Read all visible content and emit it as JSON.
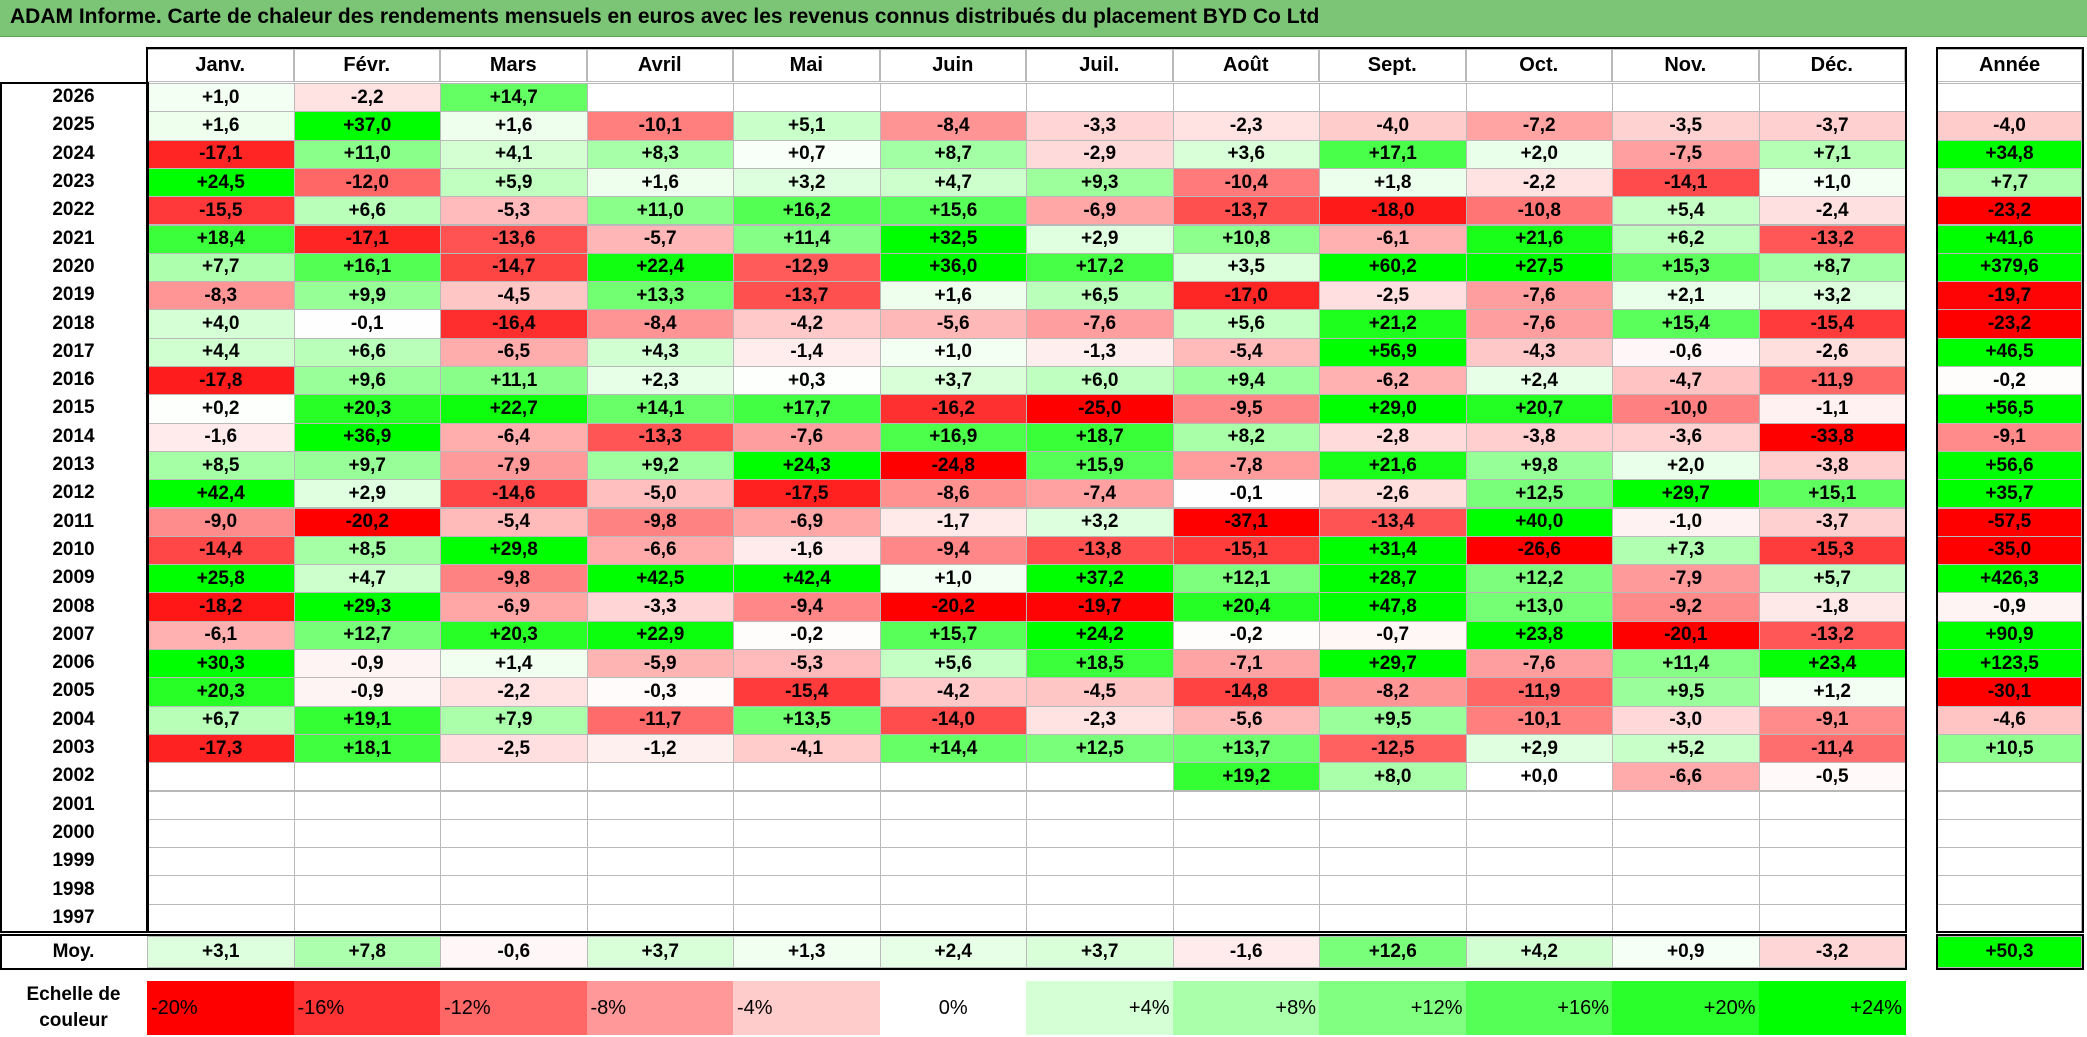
{
  "title": "ADAM Informe. Carte de chaleur des rendements mensuels en euros avec les revenus connus distribués du placement BYD Co Ltd",
  "chart_data": {
    "type": "heatmap",
    "columns": [
      "Janv.",
      "Févr.",
      "Mars",
      "Avril",
      "Mai",
      "Juin",
      "Juil.",
      "Août",
      "Sept.",
      "Oct.",
      "Nov.",
      "Déc."
    ],
    "year_column_label": "Année",
    "rows": [
      {
        "label": "2026",
        "values": [
          "+1,0",
          "-2,2",
          "+14,7",
          "",
          "",
          "",
          "",
          "",
          "",
          "",
          "",
          ""
        ],
        "year": ""
      },
      {
        "label": "2025",
        "values": [
          "+1,6",
          "+37,0",
          "+1,6",
          "-10,1",
          "+5,1",
          "-8,4",
          "-3,3",
          "-2,3",
          "-4,0",
          "-7,2",
          "-3,5",
          "-3,7"
        ],
        "year": "-4,0"
      },
      {
        "label": "2024",
        "values": [
          "-17,1",
          "+11,0",
          "+4,1",
          "+8,3",
          "+0,7",
          "+8,7",
          "-2,9",
          "+3,6",
          "+17,1",
          "+2,0",
          "-7,5",
          "+7,1"
        ],
        "year": "+34,8"
      },
      {
        "label": "2023",
        "values": [
          "+24,5",
          "-12,0",
          "+5,9",
          "+1,6",
          "+3,2",
          "+4,7",
          "+9,3",
          "-10,4",
          "+1,8",
          "-2,2",
          "-14,1",
          "+1,0"
        ],
        "year": "+7,7"
      },
      {
        "label": "2022",
        "values": [
          "-15,5",
          "+6,6",
          "-5,3",
          "+11,0",
          "+16,2",
          "+15,6",
          "-6,9",
          "-13,7",
          "-18,0",
          "-10,8",
          "+5,4",
          "-2,4"
        ],
        "year": "-23,2"
      },
      {
        "label": "2021",
        "values": [
          "+18,4",
          "-17,1",
          "-13,6",
          "-5,7",
          "+11,4",
          "+32,5",
          "+2,9",
          "+10,8",
          "-6,1",
          "+21,6",
          "+6,2",
          "-13,2"
        ],
        "year": "+41,6"
      },
      {
        "label": "2020",
        "values": [
          "+7,7",
          "+16,1",
          "-14,7",
          "+22,4",
          "-12,9",
          "+36,0",
          "+17,2",
          "+3,5",
          "+60,2",
          "+27,5",
          "+15,3",
          "+8,7"
        ],
        "year": "+379,6"
      },
      {
        "label": "2019",
        "values": [
          "-8,3",
          "+9,9",
          "-4,5",
          "+13,3",
          "-13,7",
          "+1,6",
          "+6,5",
          "-17,0",
          "-2,5",
          "-7,6",
          "+2,1",
          "+3,2"
        ],
        "year": "-19,7"
      },
      {
        "label": "2018",
        "values": [
          "+4,0",
          "-0,1",
          "-16,4",
          "-8,4",
          "-4,2",
          "-5,6",
          "-7,6",
          "+5,6",
          "+21,2",
          "-7,6",
          "+15,4",
          "-15,4"
        ],
        "year": "-23,2"
      },
      {
        "label": "2017",
        "values": [
          "+4,4",
          "+6,6",
          "-6,5",
          "+4,3",
          "-1,4",
          "+1,0",
          "-1,3",
          "-5,4",
          "+56,9",
          "-4,3",
          "-0,6",
          "-2,6"
        ],
        "year": "+46,5"
      },
      {
        "label": "2016",
        "values": [
          "-17,8",
          "+9,6",
          "+11,1",
          "+2,3",
          "+0,3",
          "+3,7",
          "+6,0",
          "+9,4",
          "-6,2",
          "+2,4",
          "-4,7",
          "-11,9"
        ],
        "year": "-0,2"
      },
      {
        "label": "2015",
        "values": [
          "+0,2",
          "+20,3",
          "+22,7",
          "+14,1",
          "+17,7",
          "-16,2",
          "-25,0",
          "-9,5",
          "+29,0",
          "+20,7",
          "-10,0",
          "-1,1"
        ],
        "year": "+56,5"
      },
      {
        "label": "2014",
        "values": [
          "-1,6",
          "+36,9",
          "-6,4",
          "-13,3",
          "-7,6",
          "+16,9",
          "+18,7",
          "+8,2",
          "-2,8",
          "-3,8",
          "-3,6",
          "-33,8"
        ],
        "year": "-9,1"
      },
      {
        "label": "2013",
        "values": [
          "+8,5",
          "+9,7",
          "-7,9",
          "+9,2",
          "+24,3",
          "-24,8",
          "+15,9",
          "-7,8",
          "+21,6",
          "+9,8",
          "+2,0",
          "-3,8"
        ],
        "year": "+56,6"
      },
      {
        "label": "2012",
        "values": [
          "+42,4",
          "+2,9",
          "-14,6",
          "-5,0",
          "-17,5",
          "-8,6",
          "-7,4",
          "-0,1",
          "-2,6",
          "+12,5",
          "+29,7",
          "+15,1"
        ],
        "year": "+35,7"
      },
      {
        "label": "2011",
        "values": [
          "-9,0",
          "-20,2",
          "-5,4",
          "-9,8",
          "-6,9",
          "-1,7",
          "+3,2",
          "-37,1",
          "-13,4",
          "+40,0",
          "-1,0",
          "-3,7"
        ],
        "year": "-57,5"
      },
      {
        "label": "2010",
        "values": [
          "-14,4",
          "+8,5",
          "+29,8",
          "-6,6",
          "-1,6",
          "-9,4",
          "-13,8",
          "-15,1",
          "+31,4",
          "-26,6",
          "+7,3",
          "-15,3"
        ],
        "year": "-35,0"
      },
      {
        "label": "2009",
        "values": [
          "+25,8",
          "+4,7",
          "-9,8",
          "+42,5",
          "+42,4",
          "+1,0",
          "+37,2",
          "+12,1",
          "+28,7",
          "+12,2",
          "-7,9",
          "+5,7"
        ],
        "year": "+426,3"
      },
      {
        "label": "2008",
        "values": [
          "-18,2",
          "+29,3",
          "-6,9",
          "-3,3",
          "-9,4",
          "-20,2",
          "-19,7",
          "+20,4",
          "+47,8",
          "+13,0",
          "-9,2",
          "-1,8"
        ],
        "year": "-0,9"
      },
      {
        "label": "2007",
        "values": [
          "-6,1",
          "+12,7",
          "+20,3",
          "+22,9",
          "-0,2",
          "+15,7",
          "+24,2",
          "-0,2",
          "-0,7",
          "+23,8",
          "-20,1",
          "-13,2"
        ],
        "year": "+90,9"
      },
      {
        "label": "2006",
        "values": [
          "+30,3",
          "-0,9",
          "+1,4",
          "-5,9",
          "-5,3",
          "+5,6",
          "+18,5",
          "-7,1",
          "+29,7",
          "-7,6",
          "+11,4",
          "+23,4"
        ],
        "year": "+123,5"
      },
      {
        "label": "2005",
        "values": [
          "+20,3",
          "-0,9",
          "-2,2",
          "-0,3",
          "-15,4",
          "-4,2",
          "-4,5",
          "-14,8",
          "-8,2",
          "-11,9",
          "+9,5",
          "+1,2"
        ],
        "year": "-30,1"
      },
      {
        "label": "2004",
        "values": [
          "+6,7",
          "+19,1",
          "+7,9",
          "-11,7",
          "+13,5",
          "-14,0",
          "-2,3",
          "-5,6",
          "+9,5",
          "-10,1",
          "-3,0",
          "-9,1"
        ],
        "year": "-4,6"
      },
      {
        "label": "2003",
        "values": [
          "-17,3",
          "+18,1",
          "-2,5",
          "-1,2",
          "-4,1",
          "+14,4",
          "+12,5",
          "+13,7",
          "-12,5",
          "+2,9",
          "+5,2",
          "-11,4"
        ],
        "year": "+10,5"
      },
      {
        "label": "2002",
        "values": [
          "",
          "",
          "",
          "",
          "",
          "",
          "",
          "+19,2",
          "+8,0",
          "+0,0",
          "-6,6",
          "-0,5"
        ],
        "year": ""
      },
      {
        "label": "2001",
        "values": [
          "",
          "",
          "",
          "",
          "",
          "",
          "",
          "",
          "",
          "",
          "",
          ""
        ],
        "year": ""
      },
      {
        "label": "2000",
        "values": [
          "",
          "",
          "",
          "",
          "",
          "",
          "",
          "",
          "",
          "",
          "",
          ""
        ],
        "year": ""
      },
      {
        "label": "1999",
        "values": [
          "",
          "",
          "",
          "",
          "",
          "",
          "",
          "",
          "",
          "",
          "",
          ""
        ],
        "year": ""
      },
      {
        "label": "1998",
        "values": [
          "",
          "",
          "",
          "",
          "",
          "",
          "",
          "",
          "",
          "",
          "",
          ""
        ],
        "year": ""
      },
      {
        "label": "1997",
        "values": [
          "",
          "",
          "",
          "",
          "",
          "",
          "",
          "",
          "",
          "",
          "",
          ""
        ],
        "year": ""
      }
    ],
    "average_row": {
      "label": "Moy.",
      "values": [
        "+3,1",
        "+7,8",
        "-0,6",
        "+3,7",
        "+1,3",
        "+2,4",
        "+3,7",
        "-1,6",
        "+12,6",
        "+4,2",
        "+0,9",
        "-3,2"
      ],
      "year": "+50,3"
    },
    "color_scale": {
      "label": "Echelle de couleur",
      "stops": [
        {
          "label": "-20%",
          "value": -20
        },
        {
          "label": "-16%",
          "value": -16
        },
        {
          "label": "-12%",
          "value": -12
        },
        {
          "label": "-8%",
          "value": -8
        },
        {
          "label": "-4%",
          "value": -4
        },
        {
          "label": "0%",
          "value": 0
        },
        {
          "label": "+4%",
          "value": 4
        },
        {
          "label": "+8%",
          "value": 8
        },
        {
          "label": "+12%",
          "value": 12
        },
        {
          "label": "+16%",
          "value": 16
        },
        {
          "label": "+20%",
          "value": 20
        },
        {
          "label": "+24%",
          "value": 24
        }
      ]
    },
    "colors": {
      "negative_max": "#ff0000",
      "neutral": "#ffffff",
      "positive_max": "#00ff00",
      "title_bg": "#7dc576"
    }
  }
}
